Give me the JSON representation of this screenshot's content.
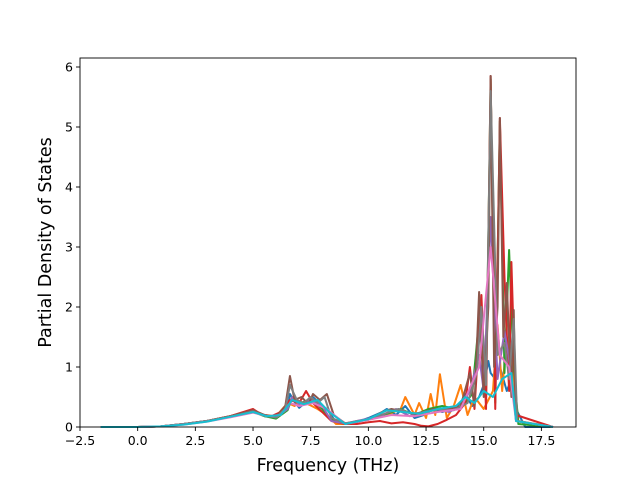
{
  "chart_data": {
    "type": "line",
    "title": "",
    "xlabel": "Frequency (THz)",
    "ylabel": "Partial Density of States",
    "xlim": [
      -2.5,
      19.0
    ],
    "ylim": [
      0,
      6.15
    ],
    "xticks": [
      -2.5,
      0.0,
      2.5,
      5.0,
      7.5,
      10.0,
      12.5,
      15.0,
      17.5
    ],
    "xtick_labels": [
      "−2.5",
      "0.0",
      "2.5",
      "5.0",
      "7.5",
      "10.0",
      "12.5",
      "15.0",
      "17.5"
    ],
    "yticks": [
      0,
      1,
      2,
      3,
      4,
      5,
      6
    ],
    "ytick_labels": [
      "0",
      "1",
      "2",
      "3",
      "4",
      "5",
      "6"
    ],
    "grid": false,
    "legend": "none",
    "series": [
      {
        "color": "#1f77b4",
        "x": [
          -1.6,
          0.0,
          1.0,
          2.0,
          3.0,
          4.0,
          5.0,
          5.5,
          6.0,
          6.5,
          6.6,
          6.8,
          7.0,
          7.4,
          7.6,
          8.0,
          8.2,
          8.6,
          9.0,
          9.5,
          10.0,
          10.6,
          10.8,
          11.2,
          11.6,
          12.0,
          12.4,
          12.8,
          13.2,
          13.6,
          14.0,
          14.2,
          14.5,
          14.8,
          15.0,
          15.2,
          15.3,
          15.5,
          15.7,
          16.0,
          16.2,
          16.4,
          16.8,
          18.0
        ],
        "y": [
          0,
          0,
          0.01,
          0.05,
          0.1,
          0.18,
          0.26,
          0.18,
          0.15,
          0.3,
          0.55,
          0.42,
          0.32,
          0.45,
          0.5,
          0.35,
          0.3,
          0.08,
          0.06,
          0.08,
          0.15,
          0.25,
          0.3,
          0.2,
          0.35,
          0.15,
          0.2,
          0.3,
          0.25,
          0.3,
          0.4,
          0.55,
          0.35,
          0.5,
          0.7,
          1.1,
          0.9,
          0.8,
          1.0,
          0.6,
          0.8,
          0.3,
          0,
          0
        ]
      },
      {
        "color": "#ff7f0e",
        "x": [
          -1.6,
          0.0,
          1.0,
          2.0,
          3.0,
          4.0,
          5.0,
          5.5,
          6.0,
          6.5,
          6.8,
          7.0,
          7.4,
          7.8,
          8.2,
          8.6,
          9.0,
          9.5,
          10.0,
          10.8,
          11.4,
          11.6,
          12.0,
          12.2,
          12.5,
          12.7,
          12.9,
          13.1,
          13.4,
          13.7,
          14.0,
          14.3,
          14.6,
          15.0,
          15.4,
          15.6,
          15.8,
          16.0,
          16.3,
          16.5,
          18.0
        ],
        "y": [
          0,
          0,
          0.01,
          0.05,
          0.1,
          0.18,
          0.28,
          0.2,
          0.18,
          0.4,
          0.35,
          0.42,
          0.38,
          0.3,
          0.2,
          0.05,
          0.05,
          0.1,
          0.12,
          0.2,
          0.3,
          0.5,
          0.2,
          0.4,
          0.15,
          0.55,
          0.2,
          0.88,
          0.15,
          0.35,
          0.7,
          0.2,
          0.5,
          0.3,
          0.6,
          1.7,
          0.6,
          1.5,
          0.8,
          0.1,
          0
        ]
      },
      {
        "color": "#2ca02c",
        "x": [
          -1.6,
          0.0,
          1.0,
          2.0,
          3.0,
          4.0,
          5.0,
          5.5,
          6.0,
          6.5,
          6.7,
          7.0,
          7.6,
          8.0,
          8.4,
          9.0,
          10.0,
          10.8,
          11.4,
          12.0,
          12.6,
          13.2,
          13.8,
          14.2,
          14.5,
          14.8,
          15.1,
          15.3,
          15.5,
          15.7,
          15.9,
          16.1,
          16.3,
          16.5,
          18.0
        ],
        "y": [
          0,
          0,
          0.01,
          0.05,
          0.1,
          0.17,
          0.25,
          0.18,
          0.14,
          0.28,
          0.5,
          0.4,
          0.45,
          0.3,
          0.12,
          0.05,
          0.13,
          0.22,
          0.3,
          0.2,
          0.3,
          0.35,
          0.3,
          0.4,
          0.55,
          1.8,
          0.5,
          5.8,
          0.4,
          5.1,
          0.9,
          2.95,
          1.0,
          0.05,
          0
        ]
      },
      {
        "color": "#d62728",
        "x": [
          -1.6,
          0.0,
          1.0,
          2.0,
          3.0,
          4.0,
          5.0,
          5.4,
          5.8,
          6.2,
          6.6,
          7.0,
          7.3,
          7.6,
          8.0,
          8.4,
          9.0,
          9.5,
          10.0,
          10.5,
          11.0,
          11.5,
          12.0,
          12.3,
          12.6,
          13.0,
          13.4,
          13.8,
          14.2,
          14.4,
          14.6,
          14.9,
          15.1,
          15.3,
          15.5,
          15.7,
          15.9,
          16.1,
          16.2,
          16.4,
          18.0
        ],
        "y": [
          0,
          0,
          0.01,
          0.05,
          0.1,
          0.18,
          0.3,
          0.2,
          0.18,
          0.25,
          0.45,
          0.4,
          0.6,
          0.4,
          0.25,
          0.1,
          0.05,
          0.05,
          0.08,
          0.1,
          0.06,
          0.08,
          0.05,
          0.02,
          0.01,
          0.05,
          0.12,
          0.2,
          0.4,
          1.0,
          0.3,
          2.2,
          0.3,
          5.85,
          0.3,
          5.15,
          2.5,
          0.6,
          2.75,
          0.2,
          0
        ]
      },
      {
        "color": "#9467bd",
        "x": [
          -1.6,
          0.0,
          1.0,
          2.0,
          3.0,
          4.0,
          5.0,
          5.5,
          6.0,
          6.5,
          6.7,
          7.0,
          7.5,
          8.0,
          8.4,
          9.0,
          10.0,
          10.6,
          11.2,
          11.8,
          12.4,
          13.0,
          13.5,
          14.0,
          14.4,
          14.8,
          15.0,
          15.3,
          15.6,
          15.9,
          16.2,
          16.4,
          18.0
        ],
        "y": [
          0,
          0,
          0.01,
          0.05,
          0.1,
          0.17,
          0.26,
          0.2,
          0.16,
          0.3,
          0.5,
          0.38,
          0.45,
          0.35,
          0.1,
          0.06,
          0.14,
          0.2,
          0.3,
          0.18,
          0.25,
          0.3,
          0.25,
          0.35,
          0.6,
          1.2,
          0.6,
          3.5,
          0.8,
          1.6,
          0.9,
          0.1,
          0
        ]
      },
      {
        "color": "#8c564b",
        "x": [
          -1.6,
          0.0,
          1.0,
          2.0,
          3.0,
          4.0,
          5.0,
          5.5,
          6.0,
          6.4,
          6.6,
          6.8,
          7.1,
          7.4,
          7.6,
          7.9,
          8.2,
          8.5,
          9.0,
          10.0,
          10.6,
          11.0,
          11.6,
          12.2,
          12.8,
          13.4,
          14.0,
          14.4,
          14.6,
          14.8,
          15.0,
          15.2,
          15.3,
          15.45,
          15.6,
          15.7,
          15.85,
          16.0,
          16.2,
          16.3,
          16.4,
          18.0
        ],
        "y": [
          0,
          0,
          0.01,
          0.05,
          0.1,
          0.18,
          0.28,
          0.2,
          0.17,
          0.35,
          0.85,
          0.45,
          0.5,
          0.38,
          0.55,
          0.45,
          0.55,
          0.2,
          0.06,
          0.12,
          0.25,
          0.3,
          0.25,
          0.2,
          0.3,
          0.3,
          0.35,
          0.9,
          0.35,
          2.25,
          0.5,
          2.0,
          5.85,
          1.0,
          2.0,
          5.15,
          1.5,
          2.4,
          0.5,
          1.95,
          0.1,
          0
        ]
      },
      {
        "color": "#7f7f7f",
        "x": [
          -1.6,
          0.0,
          1.0,
          2.0,
          3.0,
          4.0,
          5.0,
          5.5,
          6.0,
          6.4,
          6.6,
          6.9,
          7.2,
          7.5,
          7.8,
          8.1,
          8.4,
          9.0,
          10.0,
          10.7,
          11.3,
          11.9,
          12.5,
          13.1,
          13.7,
          14.3,
          14.7,
          14.9,
          15.1,
          15.3,
          15.6,
          15.9,
          16.1,
          16.3,
          16.45,
          18.0
        ],
        "y": [
          0,
          0,
          0.01,
          0.05,
          0.1,
          0.17,
          0.26,
          0.19,
          0.16,
          0.3,
          0.7,
          0.45,
          0.4,
          0.5,
          0.4,
          0.5,
          0.15,
          0.06,
          0.13,
          0.22,
          0.3,
          0.22,
          0.25,
          0.3,
          0.28,
          0.4,
          0.9,
          2.0,
          0.7,
          5.6,
          1.2,
          1.4,
          0.8,
          1.8,
          0.1,
          0
        ]
      },
      {
        "color": "#e377c2",
        "x": [
          -1.6,
          0.0,
          1.0,
          2.0,
          3.0,
          4.0,
          5.0,
          5.6,
          6.2,
          6.6,
          7.0,
          7.6,
          8.2,
          9.0,
          10.0,
          11.0,
          12.0,
          13.0,
          14.0,
          14.8,
          15.3,
          15.7,
          16.1,
          16.4,
          18.0
        ],
        "y": [
          0,
          0,
          0.01,
          0.04,
          0.09,
          0.16,
          0.24,
          0.18,
          0.2,
          0.4,
          0.35,
          0.4,
          0.3,
          0.05,
          0.12,
          0.2,
          0.18,
          0.25,
          0.3,
          1.0,
          3.0,
          1.2,
          1.0,
          0.1,
          0
        ]
      },
      {
        "color": "#17becf",
        "x": [
          -1.6,
          0.0,
          1.0,
          2.0,
          3.0,
          4.0,
          5.0,
          5.6,
          6.2,
          6.7,
          7.2,
          7.8,
          8.3,
          9.0,
          10.0,
          10.8,
          11.5,
          12.2,
          13.0,
          13.8,
          14.2,
          14.6,
          15.0,
          15.4,
          15.8,
          16.2,
          16.4,
          18.0
        ],
        "y": [
          0,
          0,
          0.01,
          0.04,
          0.09,
          0.17,
          0.25,
          0.18,
          0.2,
          0.45,
          0.38,
          0.45,
          0.25,
          0.05,
          0.13,
          0.28,
          0.25,
          0.22,
          0.3,
          0.35,
          0.5,
          0.4,
          0.6,
          0.5,
          0.8,
          0.9,
          0.1,
          0
        ]
      }
    ]
  }
}
